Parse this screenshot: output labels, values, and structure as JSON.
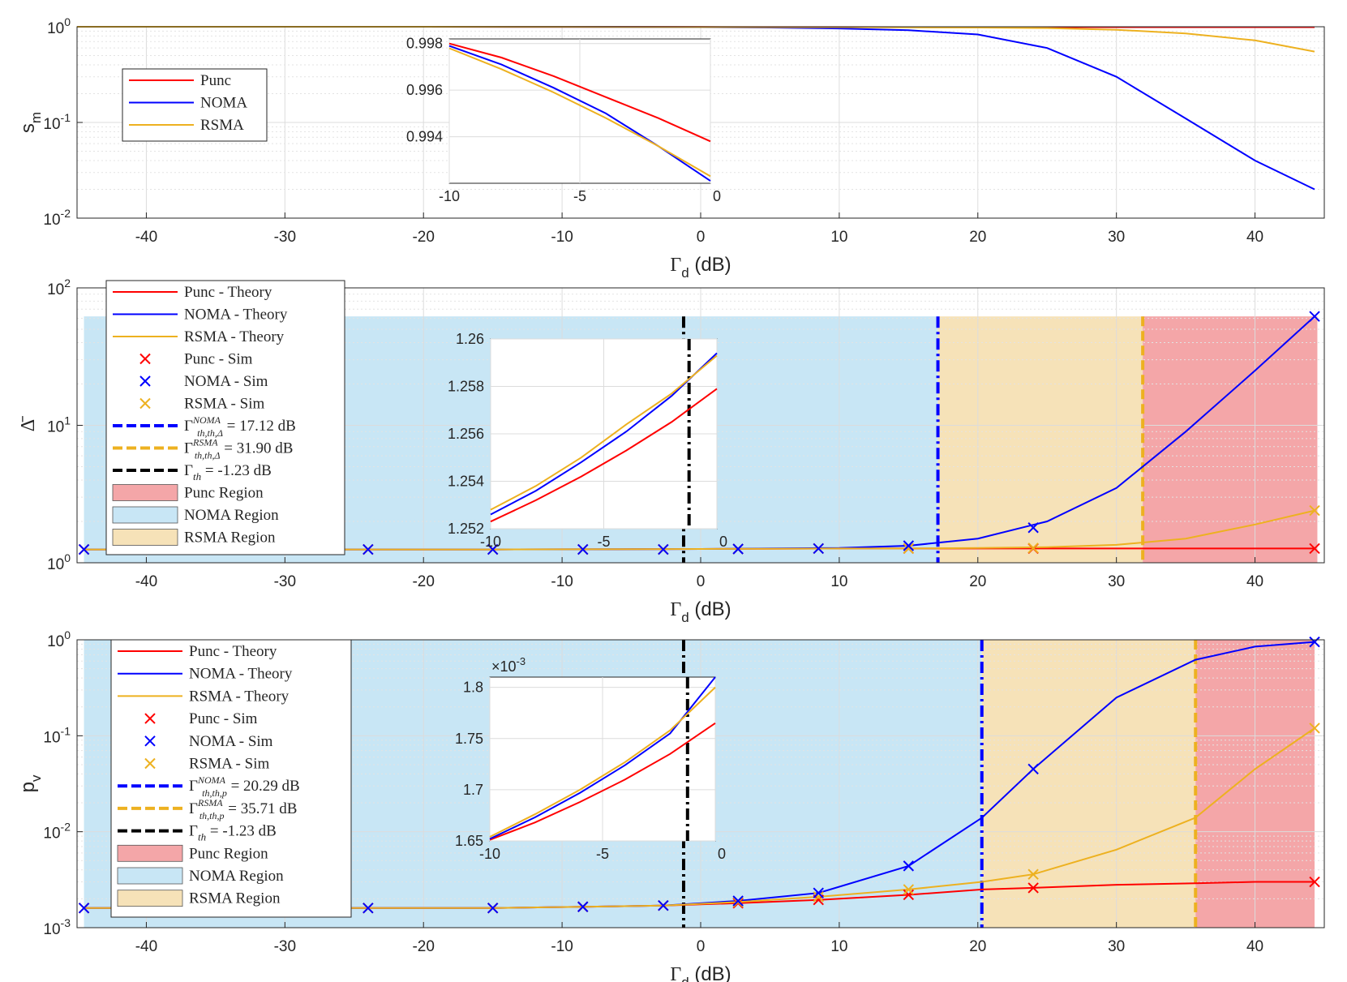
{
  "colors": {
    "punc": "#ff0000",
    "noma": "#0000ff",
    "rsma": "#edb120",
    "thr": "#000000",
    "punc_region": "#f4a6a8",
    "noma_region": "#c8e6f5",
    "rsma_region": "#f6e2b8"
  },
  "chart_data": [
    {
      "type": "line",
      "title": "",
      "xlabel": "Γ_d (dB)",
      "ylabel": "s_m",
      "xlim": [
        -45,
        45
      ],
      "ylim": [
        0.01,
        1
      ],
      "yscale": "log",
      "xticks": [
        -40,
        -30,
        -20,
        -10,
        0,
        10,
        20,
        30,
        40
      ],
      "yticks": [
        {
          "v": 0.01,
          "base": "10",
          "exp": "-2"
        },
        {
          "v": 0.1,
          "base": "10",
          "exp": "-1"
        },
        {
          "v": 1,
          "base": "10",
          "exp": "0"
        }
      ],
      "x": [
        -45,
        -40,
        -30,
        -20,
        -10,
        0,
        5,
        10,
        15,
        20,
        25,
        30,
        35,
        40,
        44.3
      ],
      "series": [
        {
          "name": "Punc",
          "key": "punc",
          "values": [
            1,
            1,
            1,
            1,
            0.998,
            0.994,
            0.993,
            0.992,
            0.991,
            0.99,
            0.99,
            0.99,
            0.99,
            0.99,
            0.99
          ]
        },
        {
          "name": "NOMA",
          "key": "noma",
          "values": [
            1,
            1,
            1,
            1,
            0.998,
            0.99,
            0.98,
            0.96,
            0.92,
            0.83,
            0.6,
            0.3,
            0.11,
            0.04,
            0.02
          ]
        },
        {
          "name": "RSMA",
          "key": "rsma",
          "values": [
            1,
            1,
            1,
            1,
            0.998,
            0.992,
            0.99,
            0.99,
            0.985,
            0.98,
            0.97,
            0.93,
            0.85,
            0.72,
            0.55
          ]
        }
      ],
      "legend": [
        "Punc",
        "NOMA",
        "RSMA"
      ],
      "inset": {
        "xlim": [
          -10,
          0
        ],
        "ylim": [
          0.992,
          0.9982
        ],
        "xticks": [
          -10,
          -5,
          0
        ],
        "yticks": [
          0.994,
          0.996,
          0.998
        ],
        "x": [
          -10,
          -8,
          -6,
          -4,
          -2,
          0
        ],
        "series": [
          {
            "key": "punc",
            "values": [
              0.998,
              0.9974,
              0.9966,
              0.9957,
              0.9948,
              0.9938
            ]
          },
          {
            "key": "noma",
            "values": [
              0.9979,
              0.9971,
              0.9961,
              0.995,
              0.9936,
              0.9921
            ]
          },
          {
            "key": "rsma",
            "values": [
              0.9978,
              0.9969,
              0.9959,
              0.9948,
              0.9936,
              0.9923
            ]
          }
        ]
      }
    },
    {
      "type": "line",
      "title": "",
      "xlabel": "Γ_d (dB)",
      "ylabel": "Δ̄",
      "xlim": [
        -45,
        45
      ],
      "ylim": [
        1,
        100
      ],
      "yscale": "log",
      "xticks": [
        -40,
        -30,
        -20,
        -10,
        0,
        10,
        20,
        30,
        40
      ],
      "yticks": [
        {
          "v": 1,
          "base": "10",
          "exp": "0"
        },
        {
          "v": 10,
          "base": "10",
          "exp": "1"
        },
        {
          "v": 100,
          "base": "10",
          "exp": "2"
        }
      ],
      "regions": [
        {
          "key": "noma_region",
          "x0": -44.5,
          "x1": 17.12,
          "ytop": 62
        },
        {
          "key": "rsma_region",
          "x0": 17.12,
          "x1": 31.9,
          "ytop": 62
        },
        {
          "key": "punc_region",
          "x0": 31.9,
          "x1": 44.5,
          "ytop": 62
        }
      ],
      "thresholds": [
        {
          "key": "thr",
          "x": -1.23,
          "style": "dashdot"
        },
        {
          "key": "noma",
          "x": 17.12,
          "style": "dashdot"
        },
        {
          "key": "rsma",
          "x": 31.9,
          "style": "dashed"
        }
      ],
      "x": [
        -44.5,
        -35,
        -25,
        -15,
        -5,
        0,
        5,
        10,
        15,
        20,
        25,
        30,
        35,
        40,
        44.3
      ],
      "series": [
        {
          "name": "Punc - Theory",
          "key": "punc",
          "values": [
            1.25,
            1.25,
            1.25,
            1.25,
            1.255,
            1.26,
            1.265,
            1.27,
            1.27,
            1.27,
            1.27,
            1.27,
            1.27,
            1.27,
            1.27
          ]
        },
        {
          "name": "NOMA - Theory",
          "key": "noma",
          "values": [
            1.25,
            1.25,
            1.25,
            1.25,
            1.256,
            1.26,
            1.27,
            1.28,
            1.33,
            1.5,
            2.0,
            3.5,
            9,
            25,
            62
          ]
        },
        {
          "name": "RSMA - Theory",
          "key": "rsma",
          "values": [
            1.25,
            1.25,
            1.25,
            1.25,
            1.256,
            1.26,
            1.265,
            1.27,
            1.27,
            1.28,
            1.3,
            1.35,
            1.5,
            1.9,
            2.4
          ]
        }
      ],
      "sim": {
        "x": [
          -44.5,
          -24,
          -15,
          -8.5,
          -2.7,
          2.7,
          8.5,
          15,
          24,
          44.3
        ],
        "punc": [
          1.25,
          1.25,
          1.25,
          1.25,
          1.25,
          1.26,
          1.27,
          1.27,
          1.27,
          1.27
        ],
        "noma": [
          1.25,
          1.25,
          1.25,
          1.25,
          1.25,
          1.26,
          1.27,
          1.33,
          1.8,
          62
        ],
        "rsma": [
          1.25,
          1.25,
          1.25,
          1.25,
          1.25,
          1.26,
          1.27,
          1.27,
          1.28,
          2.4
        ]
      },
      "legend": [
        {
          "type": "line",
          "key": "punc",
          "label": "Punc - Theory"
        },
        {
          "type": "line",
          "key": "noma",
          "label": "NOMA - Theory"
        },
        {
          "type": "line",
          "key": "rsma",
          "label": "RSMA - Theory"
        },
        {
          "type": "marker",
          "key": "punc",
          "label": "Punc - Sim"
        },
        {
          "type": "marker",
          "key": "noma",
          "label": "NOMA - Sim"
        },
        {
          "type": "marker",
          "key": "rsma",
          "label": "RSMA - Sim"
        },
        {
          "type": "dash",
          "key": "noma",
          "label": "Γ^NOMA_th,Δ̄ = 17.12 dB"
        },
        {
          "type": "dash",
          "key": "rsma",
          "label": "Γ^RSMA_th,Δ̄ = 31.90 dB"
        },
        {
          "type": "dash",
          "key": "thr",
          "label": "Γ_th = -1.23 dB"
        },
        {
          "type": "patch",
          "key": "punc_region",
          "label": "Punc Region"
        },
        {
          "type": "patch",
          "key": "noma_region",
          "label": "NOMA Region"
        },
        {
          "type": "patch",
          "key": "rsma_region",
          "label": "RSMA Region"
        }
      ],
      "inset": {
        "xlim": [
          -10,
          0
        ],
        "ylim": [
          1.252,
          1.26
        ],
        "xticks": [
          -10,
          -5,
          0
        ],
        "yticks": [
          1.252,
          1.254,
          1.256,
          1.258,
          1.26
        ],
        "vline": -1.23,
        "x": [
          -10,
          -8,
          -6,
          -4,
          -2,
          0
        ],
        "series": [
          {
            "key": "punc",
            "values": [
              1.2523,
              1.2532,
              1.2542,
              1.2553,
              1.2565,
              1.2579
            ]
          },
          {
            "key": "noma",
            "values": [
              1.2526,
              1.2536,
              1.2548,
              1.2561,
              1.2576,
              1.2594
            ]
          },
          {
            "key": "rsma",
            "values": [
              1.2528,
              1.2538,
              1.255,
              1.2564,
              1.2577,
              1.2593
            ]
          }
        ]
      }
    },
    {
      "type": "line",
      "title": "",
      "xlabel": "Γ_d (dB)",
      "ylabel": "p_v",
      "xlim": [
        -45,
        45
      ],
      "ylim": [
        0.001,
        1
      ],
      "yscale": "log",
      "xticks": [
        -40,
        -30,
        -20,
        -10,
        0,
        10,
        20,
        30,
        40
      ],
      "yticks": [
        {
          "v": 0.001,
          "base": "10",
          "exp": "-3"
        },
        {
          "v": 0.01,
          "base": "10",
          "exp": "-2"
        },
        {
          "v": 0.1,
          "base": "10",
          "exp": "-1"
        },
        {
          "v": 1,
          "base": "10",
          "exp": "0"
        }
      ],
      "regions": [
        {
          "key": "noma_region",
          "x0": -44.5,
          "x1": 20.29,
          "ytop": 1
        },
        {
          "key": "rsma_region",
          "x0": 20.29,
          "x1": 35.71,
          "ytop": 1
        },
        {
          "key": "punc_region",
          "x0": 35.71,
          "x1": 44.3,
          "ytop": 1
        }
      ],
      "thresholds": [
        {
          "key": "thr",
          "x": -1.23,
          "style": "dashdot"
        },
        {
          "key": "noma",
          "x": 20.29,
          "style": "dashdot"
        },
        {
          "key": "rsma",
          "x": 35.71,
          "style": "dashed"
        }
      ],
      "x": [
        -44.5,
        -35,
        -25,
        -15,
        -8.5,
        -2.7,
        2.7,
        8.5,
        15,
        20.3,
        24,
        30,
        35.7,
        40,
        44.3
      ],
      "series": [
        {
          "name": "Punc - Theory",
          "key": "punc",
          "values": [
            0.0016,
            0.0016,
            0.0016,
            0.0016,
            0.00165,
            0.0017,
            0.0018,
            0.00195,
            0.0022,
            0.0025,
            0.0026,
            0.0028,
            0.0029,
            0.003,
            0.003
          ]
        },
        {
          "name": "NOMA - Theory",
          "key": "noma",
          "values": [
            0.0016,
            0.0016,
            0.0016,
            0.0016,
            0.00165,
            0.0017,
            0.0019,
            0.0023,
            0.0044,
            0.014,
            0.045,
            0.25,
            0.62,
            0.85,
            0.95
          ]
        },
        {
          "name": "RSMA - Theory",
          "key": "rsma",
          "values": [
            0.0016,
            0.0016,
            0.0016,
            0.0016,
            0.00165,
            0.0017,
            0.00185,
            0.0021,
            0.0025,
            0.003,
            0.0036,
            0.0065,
            0.014,
            0.045,
            0.12
          ]
        }
      ],
      "sim": {
        "x": [
          -44.5,
          -24,
          -15,
          -8.5,
          -2.7,
          2.7,
          8.5,
          15,
          24,
          44.3
        ],
        "punc": [
          0.0016,
          0.0016,
          0.0016,
          0.00165,
          0.0017,
          0.0018,
          0.00195,
          0.0022,
          0.0026,
          0.003
        ],
        "noma": [
          0.0016,
          0.0016,
          0.0016,
          0.00165,
          0.0017,
          0.0019,
          0.0023,
          0.0044,
          0.045,
          0.95
        ],
        "rsma": [
          0.0016,
          0.0016,
          0.0016,
          0.00165,
          0.0017,
          0.00185,
          0.0021,
          0.0025,
          0.0036,
          0.12
        ]
      },
      "legend": [
        {
          "type": "line",
          "key": "punc",
          "label": "Punc - Theory"
        },
        {
          "type": "line",
          "key": "noma",
          "label": "NOMA - Theory"
        },
        {
          "type": "line",
          "key": "rsma",
          "label": "RSMA - Theory"
        },
        {
          "type": "marker",
          "key": "punc",
          "label": "Punc - Sim"
        },
        {
          "type": "marker",
          "key": "noma",
          "label": "NOMA - Sim"
        },
        {
          "type": "marker",
          "key": "rsma",
          "label": "RSMA - Sim"
        },
        {
          "type": "dash",
          "key": "noma",
          "label": "Γ^NOMA_th,pv = 20.29 dB"
        },
        {
          "type": "dash",
          "key": "rsma",
          "label": "Γ^RSMA_th,pv = 35.71 dB"
        },
        {
          "type": "dash",
          "key": "thr",
          "label": "Γ_th = -1.23 dB"
        },
        {
          "type": "patch",
          "key": "punc_region",
          "label": "Punc Region"
        },
        {
          "type": "patch",
          "key": "noma_region",
          "label": "NOMA Region"
        },
        {
          "type": "patch",
          "key": "rsma_region",
          "label": "RSMA Region"
        }
      ],
      "inset": {
        "xlim": [
          -10,
          0
        ],
        "ylim": [
          1.65,
          1.81
        ],
        "xticks": [
          -10,
          -5,
          0
        ],
        "yticks": [
          1.65,
          1.7,
          1.75,
          1.8
        ],
        "multiplier": "×10^-3",
        "vline": -1.23,
        "x": [
          -10,
          -8,
          -6,
          -4,
          -2,
          0
        ],
        "series": [
          {
            "key": "punc",
            "values": [
              1.651,
              1.668,
              1.688,
              1.71,
              1.735,
              1.765
            ]
          },
          {
            "key": "noma",
            "values": [
              1.652,
              1.673,
              1.697,
              1.724,
              1.755,
              1.81
            ]
          },
          {
            "key": "rsma",
            "values": [
              1.654,
              1.676,
              1.7,
              1.727,
              1.758,
              1.8
            ]
          }
        ]
      }
    }
  ]
}
